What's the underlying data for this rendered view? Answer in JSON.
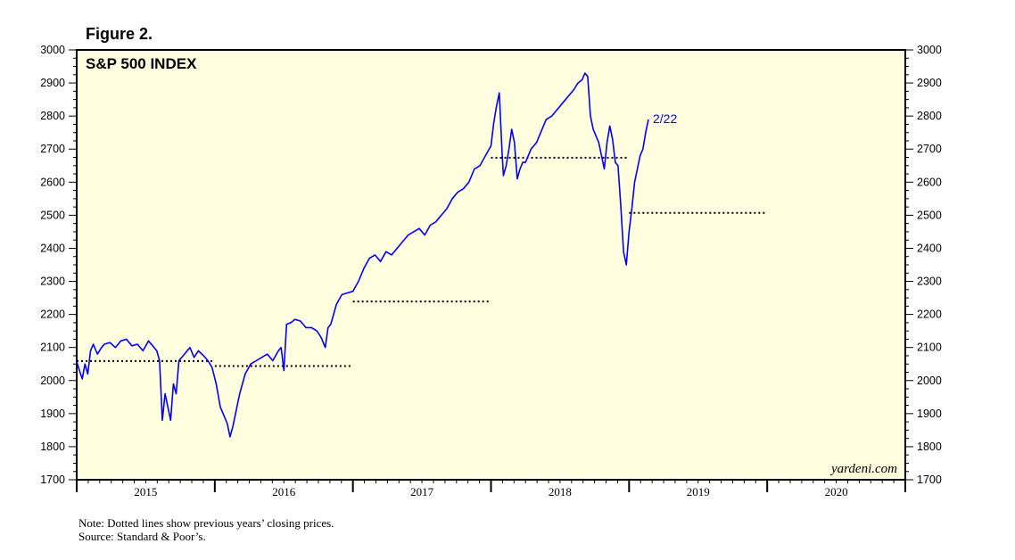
{
  "figure_label": "Figure 2.",
  "note": "Note: Dotted lines show previous years’ closing prices.",
  "source": "Source: Standard & Poor’s.",
  "watermark": "yardeni.com",
  "colors": {
    "plot_background": "#ffffe0",
    "series": "#0000ff",
    "reference_lines": "#000000"
  },
  "chart_data": {
    "type": "line",
    "title": "S&P 500 INDEX",
    "xlabel": "",
    "ylabel": "",
    "xlim": [
      2015.0,
      2021.0
    ],
    "ylim": [
      1700,
      3000
    ],
    "y_ticks": [
      1700,
      1800,
      1900,
      2000,
      2100,
      2200,
      2300,
      2400,
      2500,
      2600,
      2700,
      2800,
      2900,
      3000
    ],
    "x_tick_labels": [
      "2015",
      "2016",
      "2017",
      "2018",
      "2019",
      "2020"
    ],
    "grid": false,
    "end_label": "2/22",
    "series": [
      {
        "x": [
          2015.0,
          2015.02,
          2015.04,
          2015.06,
          2015.08,
          2015.1,
          2015.12,
          2015.15,
          2015.18,
          2015.2,
          2015.24,
          2015.28,
          2015.32,
          2015.36,
          2015.4,
          2015.44,
          2015.48,
          2015.52,
          2015.55,
          2015.58,
          2015.6,
          2015.62,
          2015.64,
          2015.66,
          2015.68,
          2015.7,
          2015.72,
          2015.74,
          2015.78,
          2015.82,
          2015.85,
          2015.88,
          2015.92,
          2015.95,
          2015.98,
          2016.01,
          2016.04,
          2016.07,
          2016.09,
          2016.11,
          2016.13,
          2016.15,
          2016.18,
          2016.22,
          2016.26,
          2016.3,
          2016.34,
          2016.38,
          2016.42,
          2016.46,
          2016.48,
          2016.5,
          2016.52,
          2016.55,
          2016.58,
          2016.62,
          2016.66,
          2016.7,
          2016.74,
          2016.77,
          2016.8,
          2016.82,
          2016.84,
          2016.86,
          2016.88,
          2016.92,
          2016.96,
          2017.0,
          2017.04,
          2017.08,
          2017.12,
          2017.16,
          2017.2,
          2017.24,
          2017.28,
          2017.32,
          2017.36,
          2017.4,
          2017.44,
          2017.48,
          2017.52,
          2017.56,
          2017.6,
          2017.64,
          2017.68,
          2017.72,
          2017.76,
          2017.8,
          2017.84,
          2017.88,
          2017.92,
          2017.96,
          2018.0,
          2018.02,
          2018.04,
          2018.06,
          2018.08,
          2018.09,
          2018.11,
          2018.13,
          2018.15,
          2018.17,
          2018.19,
          2018.21,
          2018.23,
          2018.25,
          2018.27,
          2018.29,
          2018.31,
          2018.33,
          2018.36,
          2018.4,
          2018.44,
          2018.48,
          2018.52,
          2018.56,
          2018.6,
          2018.63,
          2018.66,
          2018.68,
          2018.7,
          2018.72,
          2018.74,
          2018.76,
          2018.78,
          2018.8,
          2018.82,
          2018.84,
          2018.86,
          2018.88,
          2018.9,
          2018.92,
          2018.94,
          2018.96,
          2018.98,
          2019.0,
          2019.02,
          2019.04,
          2019.06,
          2019.08,
          2019.1,
          2019.12,
          2019.14
        ],
        "values": [
          2058,
          2030,
          2005,
          2050,
          2020,
          2090,
          2110,
          2080,
          2100,
          2110,
          2115,
          2100,
          2120,
          2125,
          2105,
          2110,
          2090,
          2120,
          2105,
          2090,
          2060,
          1880,
          1960,
          1920,
          1880,
          1990,
          1960,
          2060,
          2080,
          2100,
          2070,
          2090,
          2075,
          2060,
          2040,
          1990,
          1920,
          1890,
          1870,
          1830,
          1860,
          1900,
          1960,
          2020,
          2050,
          2060,
          2070,
          2080,
          2060,
          2090,
          2100,
          2030,
          2170,
          2175,
          2185,
          2180,
          2160,
          2160,
          2150,
          2130,
          2100,
          2160,
          2170,
          2200,
          2230,
          2260,
          2265,
          2270,
          2300,
          2340,
          2370,
          2380,
          2360,
          2390,
          2380,
          2400,
          2420,
          2440,
          2450,
          2460,
          2440,
          2470,
          2480,
          2500,
          2520,
          2550,
          2570,
          2580,
          2600,
          2640,
          2650,
          2680,
          2710,
          2780,
          2830,
          2870,
          2690,
          2620,
          2650,
          2700,
          2760,
          2720,
          2610,
          2640,
          2660,
          2660,
          2680,
          2700,
          2710,
          2720,
          2750,
          2790,
          2800,
          2820,
          2840,
          2860,
          2880,
          2900,
          2910,
          2930,
          2920,
          2800,
          2760,
          2740,
          2720,
          2680,
          2640,
          2720,
          2770,
          2730,
          2660,
          2650,
          2530,
          2390,
          2350,
          2450,
          2520,
          2600,
          2640,
          2680,
          2700,
          2750,
          2790
        ]
      }
    ],
    "reference_lines": [
      {
        "value": 2059,
        "x_start": 2015.0,
        "x_end": 2016.0
      },
      {
        "value": 2044,
        "x_start": 2016.0,
        "x_end": 2017.0
      },
      {
        "value": 2239,
        "x_start": 2017.0,
        "x_end": 2018.0
      },
      {
        "value": 2674,
        "x_start": 2018.0,
        "x_end": 2019.0
      },
      {
        "value": 2507,
        "x_start": 2019.0,
        "x_end": 2020.0
      }
    ]
  }
}
